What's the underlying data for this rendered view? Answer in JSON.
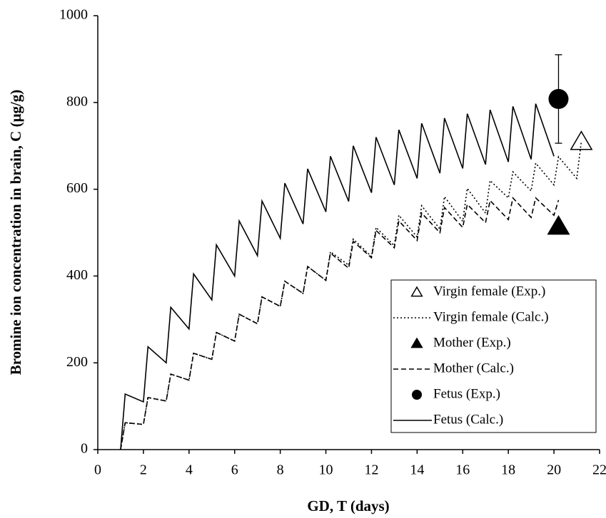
{
  "chart_data": {
    "type": "line",
    "xlabel": "GD, T (days)",
    "ylabel": "Bromine ion concentration in brain, C (μg/g)",
    "xlim": [
      0,
      22
    ],
    "xticks": [
      0,
      2,
      4,
      6,
      8,
      10,
      12,
      14,
      16,
      18,
      20,
      22
    ],
    "ylim": [
      0,
      1000
    ],
    "yticks": [
      0,
      200,
      400,
      600,
      800,
      1000
    ],
    "legend": "lower right",
    "series": [
      {
        "name": "Virgin female (Exp.)",
        "type": "scatter",
        "marker": "triangle-open",
        "color": "#000000",
        "x": [
          21.2
        ],
        "values": [
          710
        ]
      },
      {
        "name": "Virgin female (Calc.)",
        "type": "line",
        "dash": "dotted",
        "color": "#000000",
        "x": [
          1,
          1.2,
          2,
          2.2,
          3,
          3.2,
          4,
          4.2,
          5,
          5.2,
          6,
          6.2,
          7,
          7.2,
          8,
          8.2,
          9,
          9.2,
          10,
          10.2,
          11,
          11.2,
          12,
          12.2,
          13,
          13.2,
          14,
          14.2,
          15,
          15.2,
          16,
          16.2,
          17,
          17.2,
          18,
          18.2,
          19,
          19.2,
          20,
          20.2,
          21,
          21.2
        ],
        "values": [
          0,
          62,
          58,
          120,
          112,
          174,
          160,
          222,
          208,
          270,
          250,
          312,
          290,
          352,
          330,
          388,
          360,
          422,
          390,
          456,
          425,
          485,
          445,
          512,
          470,
          540,
          490,
          562,
          508,
          583,
          526,
          602,
          545,
          620,
          580,
          640,
          596,
          660,
          610,
          675,
          625,
          710
        ]
      },
      {
        "name": "Mother (Exp.)",
        "type": "scatter",
        "marker": "triangle",
        "color": "#000000",
        "x": [
          20.2
        ],
        "values": [
          515
        ]
      },
      {
        "name": "Mother (Calc.)",
        "type": "line",
        "dash": "dashed",
        "color": "#000000",
        "x": [
          1,
          1.2,
          2,
          2.2,
          3,
          3.2,
          4,
          4.2,
          5,
          5.2,
          6,
          6.2,
          7,
          7.2,
          8,
          8.2,
          9,
          9.2,
          10,
          10.2,
          11,
          11.2,
          12,
          12.2,
          13,
          13.2,
          14,
          14.2,
          15,
          15.2,
          16,
          16.2,
          17,
          17.2,
          18,
          18.2,
          19,
          19.2,
          20,
          20.2
        ],
        "values": [
          0,
          62,
          58,
          120,
          112,
          174,
          160,
          222,
          208,
          270,
          250,
          312,
          290,
          352,
          330,
          388,
          360,
          422,
          390,
          453,
          418,
          480,
          442,
          505,
          465,
          527,
          482,
          545,
          500,
          558,
          512,
          565,
          523,
          574,
          530,
          580,
          535,
          580,
          540,
          575
        ]
      },
      {
        "name": "Fetus (Exp.)",
        "type": "scatter",
        "marker": "circle",
        "color": "#000000",
        "x": [
          20.2
        ],
        "values": [
          808
        ],
        "errors": [
          102
        ]
      },
      {
        "name": "Fetus (Calc.)",
        "type": "line",
        "dash": "solid",
        "color": "#000000",
        "x": [
          1,
          1.2,
          2,
          2.2,
          3,
          3.2,
          4,
          4.2,
          5,
          5.2,
          6,
          6.2,
          7,
          7.2,
          8,
          8.2,
          9,
          9.2,
          10,
          10.2,
          11,
          11.2,
          12,
          12.2,
          13,
          13.2,
          14,
          14.2,
          15,
          15.2,
          16,
          16.2,
          17,
          17.2,
          18,
          18.2,
          19,
          19.2,
          20
        ],
        "values": [
          0,
          128,
          110,
          237,
          200,
          328,
          278,
          405,
          345,
          472,
          400,
          527,
          447,
          573,
          487,
          614,
          520,
          647,
          548,
          676,
          572,
          700,
          592,
          720,
          610,
          737,
          625,
          752,
          637,
          764,
          648,
          774,
          657,
          783,
          663,
          791,
          669,
          797,
          676
        ]
      }
    ]
  }
}
